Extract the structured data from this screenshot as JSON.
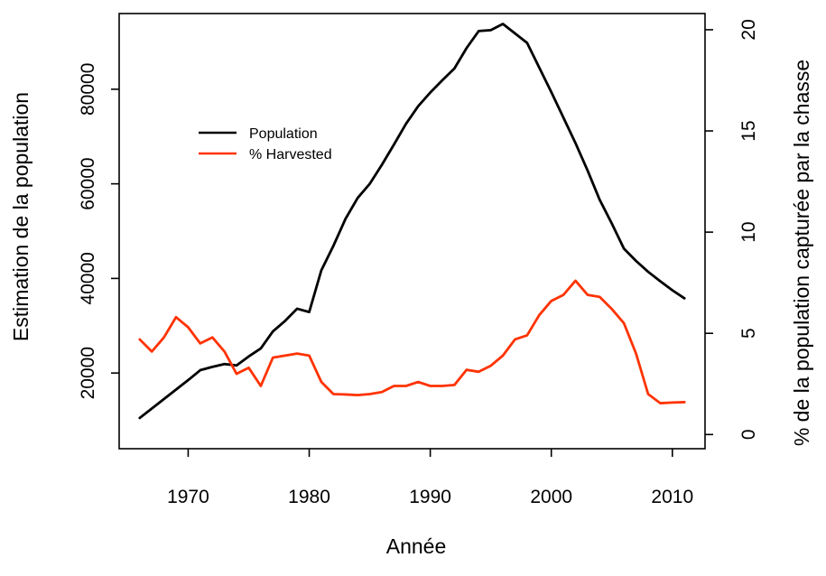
{
  "chart_data": {
    "type": "line",
    "xlabel": "Année",
    "ylabel_left": "Estimation de la population",
    "ylabel_right": "% de la population capturée par la chasse",
    "x_ticks": [
      1970,
      1980,
      1990,
      2000,
      2010
    ],
    "y_left_ticks": [
      20000,
      40000,
      60000,
      80000
    ],
    "y_right_ticks": [
      0,
      5,
      10,
      15,
      20
    ],
    "xlim": [
      1964.3,
      1812.7
    ],
    "ylim_left": [
      4000,
      96000
    ],
    "ylim_right": [
      -0.7,
      20.8
    ],
    "legend_position": "upper-left-inside",
    "series": [
      {
        "name": "Population",
        "axis": "left",
        "color": "#000000",
        "x": [
          1966,
          1967,
          1968,
          1969,
          1970,
          1971,
          1972,
          1973,
          1974,
          1975,
          1976,
          1977,
          1978,
          1979,
          1980,
          1981,
          1982,
          1983,
          1984,
          1985,
          1986,
          1987,
          1988,
          1989,
          1990,
          1991,
          1992,
          1993,
          1994,
          1995,
          1996,
          1997,
          1998,
          1999,
          2000,
          2001,
          2002,
          2003,
          2004,
          2005,
          2006,
          2007,
          2008,
          2009,
          2010,
          2011
        ],
        "values": [
          10500,
          12500,
          14500,
          16500,
          18500,
          20600,
          21300,
          21900,
          21600,
          23500,
          25200,
          28800,
          31000,
          33600,
          32900,
          41700,
          46900,
          52600,
          57000,
          60000,
          64000,
          68300,
          72700,
          76400,
          79300,
          81900,
          84400,
          88700,
          92300,
          92500,
          93800,
          91800,
          89800,
          84600,
          79400,
          74000,
          68600,
          62800,
          56600,
          51600,
          46300,
          43700,
          41400,
          39400,
          37500,
          35800
        ]
      },
      {
        "name": "% Harvested",
        "axis": "right",
        "color": "#ff3300",
        "x": [
          1966,
          1967,
          1968,
          1969,
          1970,
          1971,
          1972,
          1973,
          1974,
          1975,
          1976,
          1977,
          1978,
          1979,
          1980,
          1981,
          1982,
          1983,
          1984,
          1985,
          1986,
          1987,
          1988,
          1989,
          1990,
          1991,
          1992,
          1993,
          1994,
          1995,
          1996,
          1997,
          1998,
          1999,
          2000,
          2001,
          2002,
          2003,
          2004,
          2005,
          2006,
          2007,
          2008,
          2009,
          2010,
          2011
        ],
        "values": [
          4.7,
          4.1,
          4.8,
          5.8,
          5.3,
          4.5,
          4.8,
          4.1,
          3.0,
          3.3,
          2.4,
          3.8,
          3.9,
          4.0,
          3.9,
          2.6,
          2.0,
          1.98,
          1.95,
          2.0,
          2.1,
          2.4,
          2.4,
          2.6,
          2.4,
          2.4,
          2.45,
          3.2,
          3.1,
          3.4,
          3.9,
          4.7,
          4.9,
          5.9,
          6.6,
          6.9,
          7.6,
          6.9,
          6.8,
          6.2,
          5.5,
          4.0,
          2.0,
          1.55,
          1.58,
          1.6
        ]
      }
    ]
  }
}
